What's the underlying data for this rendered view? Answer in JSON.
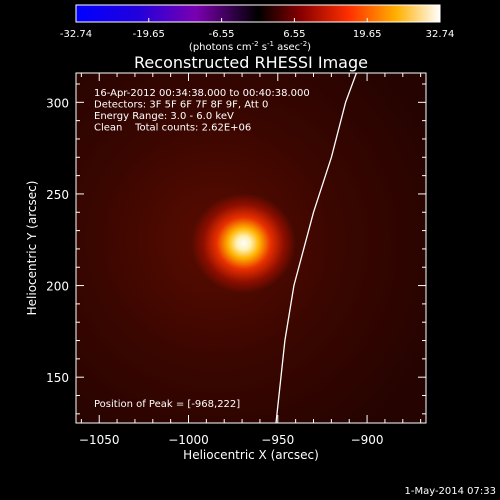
{
  "colorbar": {
    "ticks": [
      "-32.74",
      "-19.65",
      "-6.55",
      "6.55",
      "19.65",
      "32.74"
    ],
    "tick_values": [
      -32.74,
      -19.65,
      -6.55,
      6.55,
      19.65,
      32.74
    ],
    "range": [
      -32.74,
      32.74
    ],
    "unit_base": "(photons cm",
    "unit_sup1": "-2",
    "unit_mid1": " s",
    "unit_sup2": "-1",
    "unit_mid2": " asec",
    "unit_sup3": "-2",
    "unit_end": ")"
  },
  "chart_data": {
    "type": "heatmap",
    "title": "Reconstructed RHESSI Image",
    "xlabel": "Heliocentric X (arcsec)",
    "ylabel": "Heliocentric Y (arcsec)",
    "xlim": [
      -1063,
      -867
    ],
    "ylim": [
      125,
      316
    ],
    "xticks": [
      -1050,
      -1000,
      -950,
      -900
    ],
    "xtick_labels": [
      "−1050",
      "−1000",
      "−950",
      "−900"
    ],
    "yticks": [
      150,
      200,
      250,
      300
    ],
    "ytick_labels": [
      "150",
      "200",
      "250",
      "300"
    ],
    "source": {
      "x": -968,
      "y": 222,
      "peak": 32.74
    },
    "limb": [
      [
        -951,
        125
      ],
      [
        -946,
        170
      ],
      [
        -941,
        200
      ],
      [
        -930,
        240
      ],
      [
        -920,
        270
      ],
      [
        -912,
        300
      ],
      [
        -906,
        316
      ]
    ],
    "annotations": [
      "16-Apr-2012 00:34:38.000 to 00:40:38.000",
      "Detectors: 3F 5F 6F 7F 8F 9F, Att 0",
      "Energy Range: 3.0 - 6.0 keV",
      "Clean    Total counts: 2.62E+06"
    ],
    "peak_label": "Position of Peak = [-968,222]",
    "colors": {
      "background": "#000000",
      "text": "#ffffff",
      "limb": "#ffffff"
    }
  },
  "footer": {
    "timestamp": "1-May-2014 07:33"
  }
}
